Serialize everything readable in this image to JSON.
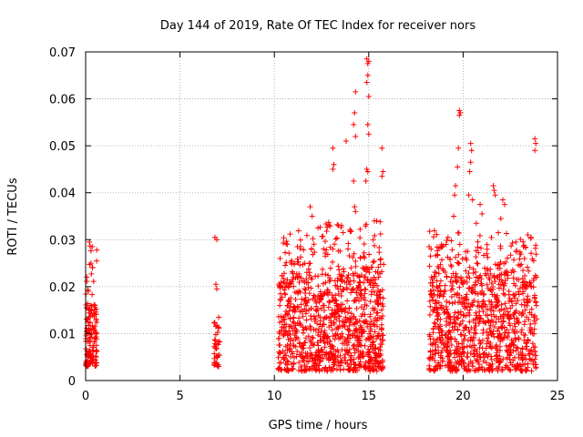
{
  "chart_data": {
    "type": "scatter",
    "title": "Day 144 of 2019, Rate Of TEC Index for receiver nors",
    "xlabel": "GPS time / hours",
    "ylabel": "ROTI / TECUs",
    "xlim": [
      0,
      25
    ],
    "ylim": [
      0,
      0.07
    ],
    "xticks": [
      0,
      5,
      10,
      15,
      20,
      25
    ],
    "xtick_labels": [
      "0",
      "5",
      "10",
      "15",
      "20",
      "25"
    ],
    "yticks": [
      0,
      0.01,
      0.02,
      0.03,
      0.04,
      0.05,
      0.06,
      0.07
    ],
    "ytick_labels": [
      "0",
      "0.01",
      "0.02",
      "0.03",
      "0.04",
      "0.05",
      "0.06",
      "0.07"
    ],
    "grid": true,
    "marker": "+",
    "color": "#ff0000",
    "dense_segments": [
      {
        "x_start": 0.0,
        "x_end": 0.6,
        "y_min": 0.003,
        "y_max": 0.016,
        "count": 130
      },
      {
        "x_start": 6.8,
        "x_end": 7.1,
        "y_min": 0.003,
        "y_max": 0.014,
        "count": 40
      },
      {
        "x_start": 10.2,
        "x_end": 15.8,
        "y_min": 0.002,
        "y_max": 0.022,
        "count": 900
      },
      {
        "x_start": 18.2,
        "x_end": 23.9,
        "y_min": 0.002,
        "y_max": 0.022,
        "count": 850
      }
    ],
    "sparse_segments": [
      {
        "x_start": 0.0,
        "x_end": 0.6,
        "y_min": 0.016,
        "y_max": 0.03,
        "count": 20
      },
      {
        "x_start": 10.2,
        "x_end": 15.8,
        "y_min": 0.022,
        "y_max": 0.034,
        "count": 160
      },
      {
        "x_start": 18.2,
        "x_end": 23.9,
        "y_min": 0.022,
        "y_max": 0.032,
        "count": 150
      }
    ],
    "outliers": [
      {
        "x": 6.85,
        "y": 0.0305
      },
      {
        "x": 6.95,
        "y": 0.03
      },
      {
        "x": 6.9,
        "y": 0.0205
      },
      {
        "x": 6.95,
        "y": 0.0195
      },
      {
        "x": 0.2,
        "y": 0.0295
      },
      {
        "x": 0.35,
        "y": 0.0285
      },
      {
        "x": 10.3,
        "y": 0.026
      },
      {
        "x": 11.9,
        "y": 0.037
      },
      {
        "x": 12.0,
        "y": 0.035
      },
      {
        "x": 13.1,
        "y": 0.0495
      },
      {
        "x": 13.15,
        "y": 0.046
      },
      {
        "x": 13.1,
        "y": 0.045
      },
      {
        "x": 13.8,
        "y": 0.051
      },
      {
        "x": 14.2,
        "y": 0.0545
      },
      {
        "x": 14.25,
        "y": 0.057
      },
      {
        "x": 14.3,
        "y": 0.052
      },
      {
        "x": 14.2,
        "y": 0.0425
      },
      {
        "x": 14.25,
        "y": 0.037
      },
      {
        "x": 14.3,
        "y": 0.036
      },
      {
        "x": 14.3,
        "y": 0.0615
      },
      {
        "x": 14.9,
        "y": 0.0685
      },
      {
        "x": 14.95,
        "y": 0.0675
      },
      {
        "x": 15.0,
        "y": 0.068
      },
      {
        "x": 14.95,
        "y": 0.065
      },
      {
        "x": 14.9,
        "y": 0.0635
      },
      {
        "x": 15.0,
        "y": 0.0605
      },
      {
        "x": 14.95,
        "y": 0.0545
      },
      {
        "x": 15.0,
        "y": 0.0525
      },
      {
        "x": 14.9,
        "y": 0.045
      },
      {
        "x": 14.95,
        "y": 0.0445
      },
      {
        "x": 14.85,
        "y": 0.0425
      },
      {
        "x": 15.3,
        "y": 0.034
      },
      {
        "x": 15.7,
        "y": 0.0495
      },
      {
        "x": 15.75,
        "y": 0.0445
      },
      {
        "x": 15.7,
        "y": 0.0435
      },
      {
        "x": 18.2,
        "y": 0.0285
      },
      {
        "x": 18.3,
        "y": 0.028
      },
      {
        "x": 19.1,
        "y": 0.029
      },
      {
        "x": 19.2,
        "y": 0.0305
      },
      {
        "x": 19.5,
        "y": 0.035
      },
      {
        "x": 19.55,
        "y": 0.0395
      },
      {
        "x": 19.6,
        "y": 0.0415
      },
      {
        "x": 19.7,
        "y": 0.0455
      },
      {
        "x": 19.75,
        "y": 0.0495
      },
      {
        "x": 19.8,
        "y": 0.0575
      },
      {
        "x": 19.85,
        "y": 0.057
      },
      {
        "x": 19.8,
        "y": 0.0565
      },
      {
        "x": 20.4,
        "y": 0.0505
      },
      {
        "x": 20.45,
        "y": 0.049
      },
      {
        "x": 20.4,
        "y": 0.0465
      },
      {
        "x": 20.35,
        "y": 0.0445
      },
      {
        "x": 20.3,
        "y": 0.0395
      },
      {
        "x": 20.5,
        "y": 0.0385
      },
      {
        "x": 20.7,
        "y": 0.0335
      },
      {
        "x": 20.9,
        "y": 0.0375
      },
      {
        "x": 21.0,
        "y": 0.0355
      },
      {
        "x": 21.6,
        "y": 0.0415
      },
      {
        "x": 21.65,
        "y": 0.0405
      },
      {
        "x": 21.7,
        "y": 0.0395
      },
      {
        "x": 22.1,
        "y": 0.0385
      },
      {
        "x": 22.2,
        "y": 0.0375
      },
      {
        "x": 22.0,
        "y": 0.0345
      },
      {
        "x": 22.8,
        "y": 0.0295
      },
      {
        "x": 23.2,
        "y": 0.0285
      },
      {
        "x": 23.8,
        "y": 0.0515
      },
      {
        "x": 23.85,
        "y": 0.0505
      },
      {
        "x": 23.8,
        "y": 0.049
      },
      {
        "x": 23.6,
        "y": 0.0305
      }
    ]
  }
}
